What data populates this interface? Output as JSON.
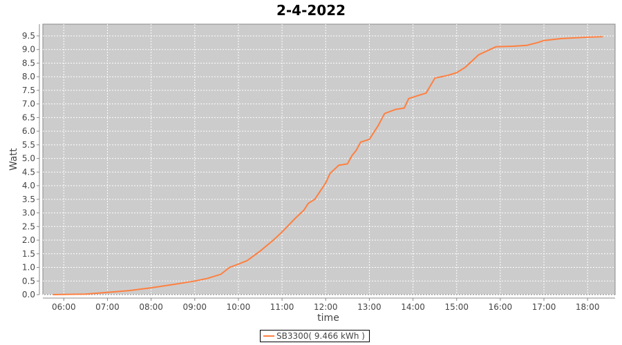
{
  "chart_data": {
    "type": "line",
    "title": "2-4-2022",
    "xlabel": "time",
    "ylabel": "Watt",
    "xlim_hours": [
      5.52,
      18.63
    ],
    "ylim": [
      0,
      9.93
    ],
    "x_ticks": [
      "06:00",
      "07:00",
      "08:00",
      "09:00",
      "10:00",
      "11:00",
      "12:00",
      "13:00",
      "14:00",
      "15:00",
      "16:00",
      "17:00",
      "18:00"
    ],
    "y_ticks": [
      "0.0",
      "0.5",
      "1.0",
      "1.5",
      "2.0",
      "2.5",
      "3.0",
      "3.5",
      "4.0",
      "4.5",
      "5.0",
      "5.5",
      "6.0",
      "6.5",
      "7.0",
      "7.5",
      "8.0",
      "8.5",
      "9.0",
      "9.5"
    ],
    "grid": true,
    "background": "#cccccc",
    "series": [
      {
        "name": "SB3300( 9.466 kWh )",
        "color": "#ff7f3f",
        "x": [
          "05:45",
          "06:30",
          "07:00",
          "07:30",
          "08:00",
          "08:30",
          "09:00",
          "09:18",
          "09:36",
          "09:48",
          "10:00",
          "10:12",
          "10:30",
          "10:48",
          "11:00",
          "11:18",
          "11:30",
          "11:36",
          "11:45",
          "12:00",
          "12:06",
          "12:18",
          "12:30",
          "12:36",
          "12:42",
          "12:48",
          "13:00",
          "13:12",
          "13:21",
          "13:36",
          "13:48",
          "13:54",
          "14:06",
          "14:18",
          "14:30",
          "14:48",
          "15:00",
          "15:12",
          "15:30",
          "15:42",
          "15:54",
          "16:18",
          "16:36",
          "16:51",
          "17:00",
          "17:24",
          "18:00",
          "18:21"
        ],
        "y": [
          0,
          0.02,
          0.08,
          0.15,
          0.25,
          0.37,
          0.5,
          0.6,
          0.75,
          1.0,
          1.12,
          1.25,
          1.6,
          2.0,
          2.3,
          2.8,
          3.1,
          3.35,
          3.5,
          4.1,
          4.45,
          4.75,
          4.8,
          5.1,
          5.3,
          5.6,
          5.7,
          6.2,
          6.65,
          6.8,
          6.85,
          7.2,
          7.3,
          7.4,
          7.95,
          8.05,
          8.15,
          8.35,
          8.8,
          8.95,
          9.1,
          9.12,
          9.15,
          9.25,
          9.33,
          9.4,
          9.45,
          9.466
        ]
      }
    ],
    "legend": {
      "label": "SB3300( 9.466 kWh )",
      "placement": "bottom"
    }
  }
}
